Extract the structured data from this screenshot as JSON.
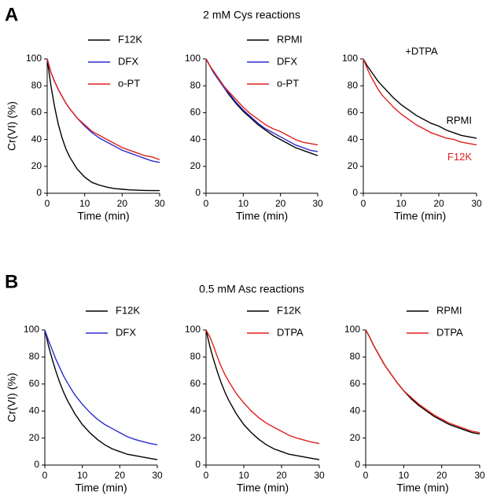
{
  "panels": [
    {
      "letter": "A",
      "title": "2 mM Cys reactions"
    },
    {
      "letter": "B",
      "title": "0.5 mM Asc reactions"
    }
  ],
  "chart_data": [
    {
      "type": "line",
      "ylabel": "Cr(VI) (%)",
      "xlabel": "Time (min)",
      "legend": "upper-right",
      "xlim": [
        0,
        30
      ],
      "ylim": [
        0,
        100
      ],
      "xticks": [
        0,
        10,
        20,
        30
      ],
      "yticks": [
        0,
        20,
        40,
        60,
        80,
        100
      ],
      "x": [
        0,
        1,
        2,
        3,
        4,
        5,
        6,
        8,
        10,
        12,
        14,
        16,
        18,
        20,
        22,
        24,
        26,
        28,
        30
      ],
      "series": [
        {
          "name": "F12K",
          "color": "#000000",
          "values": [
            100,
            80,
            64,
            51,
            41,
            33,
            27,
            18,
            12,
            8,
            6,
            4.5,
            3.5,
            3,
            2.5,
            2.3,
            2.1,
            2,
            2
          ]
        },
        {
          "name": "DFX",
          "color": "#2b2bcc",
          "values": [
            100,
            90,
            83,
            77,
            72,
            67,
            63,
            56,
            50,
            45,
            41,
            38,
            35,
            32,
            30,
            28,
            26,
            24,
            23
          ]
        },
        {
          "name": "o-PT",
          "color": "#e0201b",
          "values": [
            100,
            90,
            83,
            77,
            72,
            67,
            63,
            56,
            51,
            46,
            43,
            40,
            37,
            34,
            32,
            30,
            28,
            27,
            25
          ]
        }
      ]
    },
    {
      "type": "line",
      "xlabel": "Time (min)",
      "legend": "upper-right",
      "xlim": [
        0,
        30
      ],
      "ylim": [
        0,
        100
      ],
      "xticks": [
        0,
        10,
        20,
        30
      ],
      "yticks": [
        0,
        20,
        40,
        60,
        80,
        100
      ],
      "x": [
        0,
        1,
        2,
        3,
        4,
        5,
        6,
        8,
        10,
        12,
        14,
        16,
        18,
        20,
        22,
        24,
        26,
        28,
        30
      ],
      "series": [
        {
          "name": "RPMI",
          "color": "#000000",
          "values": [
            100,
            95,
            90,
            86,
            82,
            78,
            74,
            67,
            61,
            56,
            51,
            47,
            43,
            40,
            37,
            34,
            32,
            30,
            28
          ]
        },
        {
          "name": "DFX",
          "color": "#2b2bcc",
          "values": [
            100,
            95,
            90,
            86,
            82,
            78,
            75,
            68,
            62,
            57,
            52,
            48,
            45,
            42,
            39,
            36,
            34,
            32,
            31
          ]
        },
        {
          "name": "o-PT",
          "color": "#e0201b",
          "values": [
            100,
            95,
            91,
            87,
            83,
            79,
            76,
            70,
            64,
            59,
            55,
            51,
            48,
            46,
            43,
            40,
            38,
            37,
            36
          ]
        }
      ]
    },
    {
      "type": "line",
      "xlabel": "Time (min)",
      "legend": "inline",
      "annotation": "+DTPA",
      "xlim": [
        0,
        30
      ],
      "ylim": [
        0,
        100
      ],
      "xticks": [
        0,
        10,
        20,
        30
      ],
      "yticks": [
        0,
        20,
        40,
        60,
        80,
        100
      ],
      "x": [
        0,
        1,
        2,
        3,
        4,
        5,
        6,
        8,
        10,
        12,
        14,
        16,
        18,
        20,
        22,
        24,
        26,
        28,
        30
      ],
      "series": [
        {
          "name": "RPMI",
          "color": "#000000",
          "values": [
            100,
            95,
            91,
            87,
            83,
            80,
            77,
            71,
            66,
            62,
            58,
            55,
            52,
            50,
            47,
            45,
            43,
            42,
            41
          ]
        },
        {
          "name": "F12K",
          "color": "#e0201b",
          "values": [
            100,
            93,
            87,
            82,
            77,
            73,
            70,
            64,
            59,
            55,
            51,
            48,
            45,
            43,
            41,
            40,
            38,
            37,
            36
          ]
        }
      ]
    },
    {
      "type": "line",
      "ylabel": "Cr(VI) (%)",
      "xlabel": "Time (min)",
      "legend": "upper-right",
      "xlim": [
        0,
        30
      ],
      "ylim": [
        0,
        100
      ],
      "xticks": [
        0,
        10,
        20,
        30
      ],
      "yticks": [
        0,
        20,
        40,
        60,
        80,
        100
      ],
      "x": [
        0,
        1,
        2,
        3,
        4,
        5,
        6,
        8,
        10,
        12,
        14,
        16,
        18,
        20,
        22,
        24,
        26,
        28,
        30
      ],
      "series": [
        {
          "name": "F12K",
          "color": "#000000",
          "values": [
            100,
            88,
            78,
            69,
            61,
            54,
            48,
            38,
            30,
            24,
            19,
            15,
            12,
            10,
            8,
            7,
            6,
            5,
            4
          ]
        },
        {
          "name": "DFX",
          "color": "#2b2bcc",
          "values": [
            100,
            92,
            85,
            78,
            72,
            66,
            61,
            52,
            45,
            39,
            34,
            30,
            27,
            24,
            21,
            19,
            17.5,
            16,
            15
          ]
        }
      ]
    },
    {
      "type": "line",
      "xlabel": "Time (min)",
      "legend": "upper-right",
      "xlim": [
        0,
        30
      ],
      "ylim": [
        0,
        100
      ],
      "xticks": [
        0,
        10,
        20,
        30
      ],
      "yticks": [
        0,
        20,
        40,
        60,
        80,
        100
      ],
      "x": [
        0,
        1,
        2,
        3,
        4,
        5,
        6,
        8,
        10,
        12,
        14,
        16,
        18,
        20,
        22,
        24,
        26,
        28,
        30
      ],
      "series": [
        {
          "name": "F12K",
          "color": "#000000",
          "values": [
            100,
            88,
            78,
            69,
            61,
            54,
            48,
            38,
            30,
            24,
            19,
            15,
            12,
            10,
            8,
            7,
            6,
            5,
            4
          ]
        },
        {
          "name": "DTPA",
          "color": "#e0201b",
          "values": [
            100,
            95,
            88,
            80,
            73,
            67,
            62,
            53,
            46,
            40,
            35,
            31,
            28,
            25,
            22,
            20,
            18.5,
            17,
            16
          ]
        }
      ]
    },
    {
      "type": "line",
      "xlabel": "Time (min)",
      "legend": "upper-right",
      "xlim": [
        0,
        30
      ],
      "ylim": [
        0,
        100
      ],
      "xticks": [
        0,
        10,
        20,
        30
      ],
      "yticks": [
        0,
        20,
        40,
        60,
        80,
        100
      ],
      "x": [
        0,
        1,
        2,
        3,
        4,
        5,
        6,
        8,
        10,
        12,
        14,
        16,
        18,
        20,
        22,
        24,
        26,
        28,
        30
      ],
      "series": [
        {
          "name": "RPMI",
          "color": "#000000",
          "values": [
            100,
            95,
            89,
            84,
            79,
            74,
            70,
            62,
            55,
            49,
            44,
            40,
            36,
            33,
            30,
            28,
            26,
            24,
            23
          ]
        },
        {
          "name": "DTPA",
          "color": "#e0201b",
          "values": [
            100,
            95,
            89,
            84,
            79,
            74,
            70,
            62,
            55,
            50,
            45,
            41,
            37,
            34,
            31,
            29,
            27,
            25,
            24
          ]
        }
      ]
    }
  ]
}
